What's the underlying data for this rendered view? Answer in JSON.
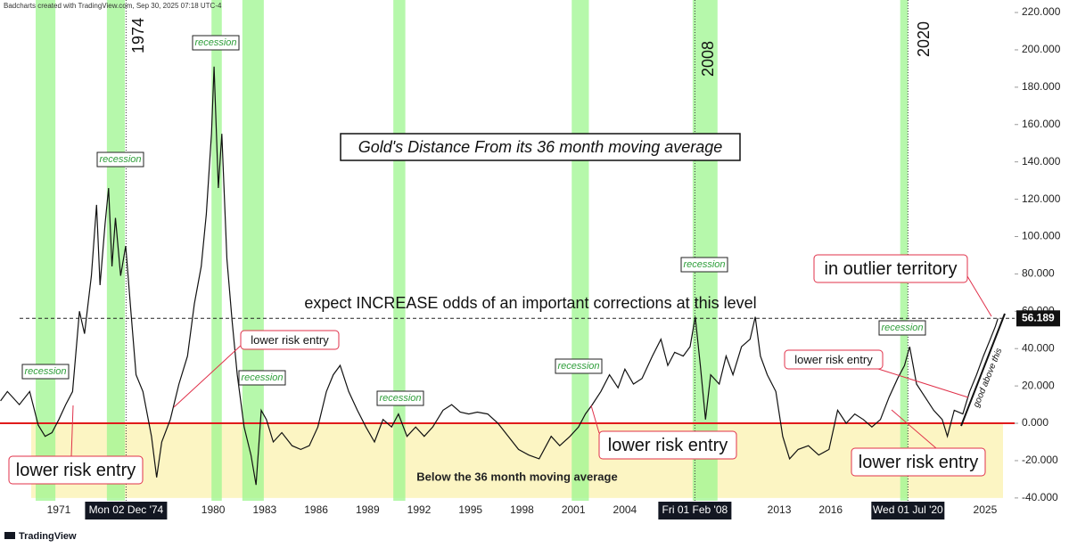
{
  "header": "Badcharts created with TradingView.com, Sep 30, 2025 07:18 UTC-4",
  "footer": "TradingView",
  "chart_data": {
    "type": "line",
    "title": "Gold's Distance From its 36 month moving average",
    "color": "#111111",
    "xlim": [
      1967.57,
      2026.72
    ],
    "ylim": [
      -41.5,
      226.7
    ],
    "xticks": [
      1971,
      1980,
      1983,
      1986,
      1989,
      1992,
      1995,
      1998,
      2001,
      2004,
      2013,
      2016,
      2025
    ],
    "yticks": [
      {
        "value": -40,
        "label": "-40.000"
      },
      {
        "value": -20,
        "label": "-20.000"
      },
      {
        "value": 0,
        "label": "0.000"
      },
      {
        "value": 20,
        "label": "20.000"
      },
      {
        "value": 40,
        "label": "40.000"
      },
      {
        "value": 60,
        "label": "60.000"
      },
      {
        "value": 80,
        "label": "80.000"
      },
      {
        "value": 100,
        "label": "100.000"
      },
      {
        "value": 120,
        "label": "120.000"
      },
      {
        "value": 140,
        "label": "140.000"
      },
      {
        "value": 160,
        "label": "160.000"
      },
      {
        "value": 180,
        "label": "180.000"
      },
      {
        "value": 200,
        "label": "200.000"
      },
      {
        "value": 220,
        "label": "220.000"
      }
    ],
    "x": [
      1967.6,
      1968.0,
      1968.7,
      1969.3,
      1969.8,
      1970.2,
      1970.6,
      1971.0,
      1971.4,
      1971.8,
      1972.2,
      1972.5,
      1972.9,
      1973.2,
      1973.4,
      1973.7,
      1973.9,
      1974.1,
      1974.3,
      1974.6,
      1974.9,
      1975.2,
      1975.5,
      1975.9,
      1976.4,
      1976.7,
      1977.0,
      1977.5,
      1978.0,
      1978.5,
      1978.9,
      1979.3,
      1979.6,
      1979.9,
      1980.05,
      1980.3,
      1980.5,
      1980.8,
      1981.1,
      1981.4,
      1981.8,
      1982.2,
      1982.5,
      1982.8,
      1983.1,
      1983.5,
      1984.0,
      1984.6,
      1985.1,
      1985.6,
      1986.1,
      1986.6,
      1987.0,
      1987.4,
      1987.9,
      1988.4,
      1988.9,
      1989.4,
      1989.9,
      1990.4,
      1990.8,
      1991.3,
      1991.8,
      1992.3,
      1992.8,
      1993.4,
      1993.9,
      1994.4,
      1994.9,
      1995.4,
      1996.0,
      1996.6,
      1997.2,
      1997.8,
      1998.4,
      1999.0,
      1999.7,
      2000.2,
      2000.8,
      2001.3,
      2001.7,
      2002.1,
      2002.6,
      2003.1,
      2003.6,
      2004.0,
      2004.5,
      2005.0,
      2005.6,
      2006.1,
      2006.5,
      2006.9,
      2007.4,
      2007.8,
      2008.1,
      2008.4,
      2008.7,
      2009.0,
      2009.5,
      2009.9,
      2010.3,
      2010.8,
      2011.3,
      2011.6,
      2011.9,
      2012.3,
      2012.8,
      2013.2,
      2013.6,
      2014.1,
      2014.7,
      2015.3,
      2015.9,
      2016.4,
      2016.9,
      2017.4,
      2017.9,
      2018.4,
      2018.9,
      2019.4,
      2019.9,
      2020.3,
      2020.6,
      2021.0,
      2021.5,
      2022.0,
      2022.5,
      2022.8,
      2023.2,
      2023.7,
      2024.1,
      2024.5,
      2024.9,
      2025.3,
      2025.6,
      2025.75
    ],
    "values": [
      12,
      17,
      10,
      17,
      -1,
      -7,
      -5,
      2,
      10,
      17,
      60,
      48,
      79,
      117,
      74,
      107,
      126,
      84,
      110,
      79,
      95,
      60,
      26,
      17,
      -7,
      -29,
      -10,
      2,
      21,
      36,
      64,
      84,
      112,
      155,
      191,
      126,
      155,
      88,
      55,
      26,
      -2,
      -17,
      -33,
      7,
      2,
      -10,
      -5,
      -12,
      -14,
      -12,
      -2,
      17,
      26,
      31,
      17,
      7,
      -2,
      -10,
      2,
      -2,
      5,
      -7,
      -2,
      -7,
      -2,
      7,
      10,
      6,
      5,
      6,
      5,
      0,
      -7,
      -14,
      -17,
      -19,
      -7,
      -12,
      -7,
      -2,
      5,
      10,
      17,
      26,
      19,
      29,
      21,
      24,
      36,
      45,
      31,
      38,
      36,
      41,
      57,
      31,
      2,
      26,
      21,
      36,
      26,
      41,
      45,
      57,
      36,
      26,
      17,
      -7,
      -19,
      -14,
      -12,
      -17,
      -14,
      7,
      0,
      5,
      2,
      -2,
      2,
      14,
      24,
      31,
      41,
      21,
      14,
      7,
      2,
      -7,
      7,
      5,
      17,
      26,
      36,
      45,
      52,
      56.189
    ],
    "zero_line": 0,
    "level": 56.189,
    "level_note": "expect INCREASE odds of an important corrections at this level",
    "below_zone": {
      "from": 0,
      "to": -40,
      "label": "Below the 36 month moving average"
    },
    "recessions": [
      {
        "start": 1969.65,
        "end": 1970.8,
        "label": "recession"
      },
      {
        "start": 1973.8,
        "end": 1974.85,
        "label": "recession"
      },
      {
        "start": 1979.9,
        "end": 1980.5,
        "label": "recession"
      },
      {
        "start": 1981.7,
        "end": 1982.95,
        "label": "recession"
      },
      {
        "start": 1990.5,
        "end": 1991.2,
        "label": "recession"
      },
      {
        "start": 2000.9,
        "end": 2001.9,
        "label": "recession"
      },
      {
        "start": 2007.95,
        "end": 2009.4,
        "label": "recession"
      },
      {
        "start": 2020.05,
        "end": 2020.5,
        "label": "recession"
      }
    ],
    "markers": [
      {
        "x": 1974.92,
        "label": "1974",
        "date_label": "Mon 02 Dec '74"
      },
      {
        "x": 2008.08,
        "label": "2008",
        "date_label": "Fri 01 Feb '08"
      },
      {
        "x": 2020.5,
        "label": "2020",
        "date_label": "Wed 01 Jul '20"
      }
    ],
    "annotations": [
      {
        "text": "lower risk entry"
      },
      {
        "text": "lower risk entry"
      },
      {
        "text": "lower risk entry"
      },
      {
        "text": "lower risk entry"
      },
      {
        "text": "lower risk entry"
      },
      {
        "text": "in outlier territory"
      },
      {
        "text": "good above this"
      }
    ]
  }
}
